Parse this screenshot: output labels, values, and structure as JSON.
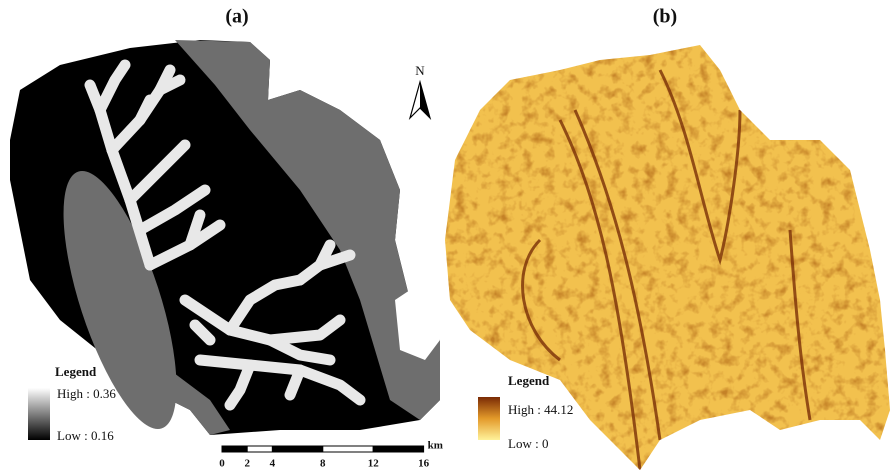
{
  "panel_a": {
    "label": "(a)",
    "north": "N",
    "legend": {
      "title": "Legend",
      "high": "High : 0.36",
      "low": "Low : 0.16"
    },
    "scale_bar": {
      "ticks": [
        0,
        2,
        4,
        8,
        12,
        16
      ],
      "unit": "km"
    }
  },
  "panel_b": {
    "label": "(b)",
    "legend": {
      "title": "Legend",
      "high": "High : 44.12",
      "low": "Low : 0"
    }
  }
}
